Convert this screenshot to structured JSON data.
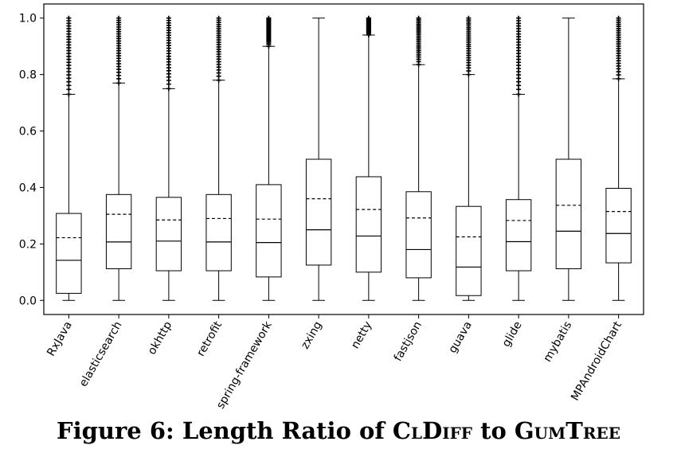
{
  "caption": {
    "prefix": "Figure 6: Length Ratio of ",
    "tool_a": "ClDiff",
    "middle": " to ",
    "tool_b": "GumTree"
  },
  "chart_data": {
    "type": "box",
    "title": "",
    "xlabel": "",
    "ylabel": "",
    "ylim": [
      -0.05,
      1.05
    ],
    "yticks": [
      "0.0",
      "0.2",
      "0.4",
      "0.6",
      "0.8",
      "1.0"
    ],
    "grid": false,
    "mean_line": "dashed",
    "categories": [
      "RxJava",
      "elasticsearch",
      "okhttp",
      "retrofit",
      "spring-framework",
      "zxing",
      "netty",
      "fastjson",
      "guava",
      "glide",
      "mybatis",
      "MPAndroidChart"
    ],
    "boxes": [
      {
        "whislo": 0.0,
        "q1": 0.025,
        "med": 0.142,
        "mean": 0.222,
        "q3": 0.308,
        "whishi": 0.73,
        "fliers_range": [
          0.73,
          1.0
        ]
      },
      {
        "whislo": 0.0,
        "q1": 0.112,
        "med": 0.207,
        "mean": 0.305,
        "q3": 0.375,
        "whishi": 0.77,
        "fliers_range": [
          0.77,
          1.0
        ]
      },
      {
        "whislo": 0.0,
        "q1": 0.105,
        "med": 0.21,
        "mean": 0.285,
        "q3": 0.365,
        "whishi": 0.75,
        "fliers_range": [
          0.75,
          1.0
        ]
      },
      {
        "whislo": 0.0,
        "q1": 0.105,
        "med": 0.207,
        "mean": 0.29,
        "q3": 0.375,
        "whishi": 0.78,
        "fliers_range": [
          0.78,
          1.0
        ]
      },
      {
        "whislo": 0.0,
        "q1": 0.083,
        "med": 0.205,
        "mean": 0.288,
        "q3": 0.41,
        "whishi": 0.9,
        "fliers_range": [
          0.9,
          1.0
        ]
      },
      {
        "whislo": 0.0,
        "q1": 0.125,
        "med": 0.25,
        "mean": 0.36,
        "q3": 0.5,
        "whishi": 1.0,
        "fliers_range": null
      },
      {
        "whislo": 0.0,
        "q1": 0.1,
        "med": 0.228,
        "mean": 0.322,
        "q3": 0.438,
        "whishi": 0.94,
        "fliers_range": [
          0.94,
          1.0
        ]
      },
      {
        "whislo": 0.0,
        "q1": 0.08,
        "med": 0.18,
        "mean": 0.292,
        "q3": 0.385,
        "whishi": 0.835,
        "fliers_range": [
          0.835,
          1.0
        ]
      },
      {
        "whislo": 0.0,
        "q1": 0.017,
        "med": 0.118,
        "mean": 0.225,
        "q3": 0.333,
        "whishi": 0.8,
        "fliers_range": [
          0.8,
          1.0
        ]
      },
      {
        "whislo": 0.0,
        "q1": 0.105,
        "med": 0.208,
        "mean": 0.283,
        "q3": 0.357,
        "whishi": 0.73,
        "fliers_range": [
          0.73,
          1.0
        ]
      },
      {
        "whislo": 0.0,
        "q1": 0.112,
        "med": 0.245,
        "mean": 0.337,
        "q3": 0.5,
        "whishi": 1.0,
        "fliers_range": null
      },
      {
        "whislo": 0.0,
        "q1": 0.133,
        "med": 0.237,
        "mean": 0.315,
        "q3": 0.397,
        "whishi": 0.785,
        "fliers_range": [
          0.785,
          1.0
        ]
      }
    ]
  }
}
